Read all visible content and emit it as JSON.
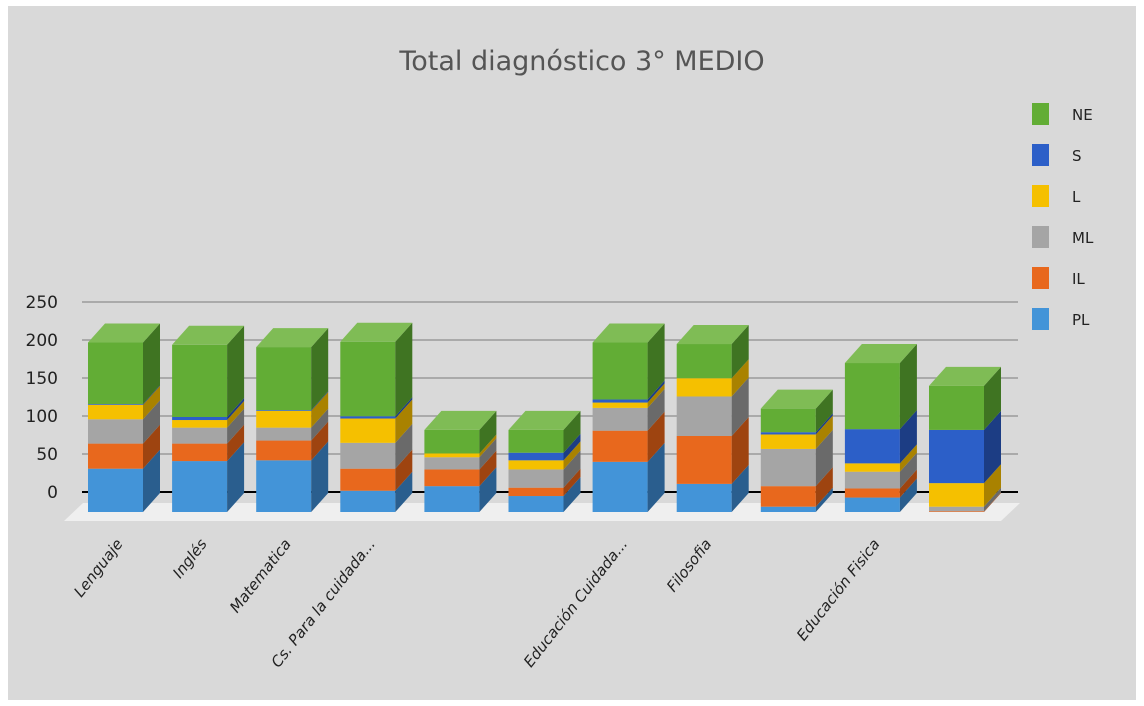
{
  "chart_data": {
    "type": "bar",
    "stacked": true,
    "three_d": true,
    "title": "Total diagnóstico 3° MEDIO",
    "xlabel": "",
    "ylabel": "",
    "ylim": [
      0,
      250
    ],
    "yticks": [
      0,
      50,
      100,
      150,
      200,
      250
    ],
    "grid": true,
    "legend_position": "right",
    "categories": [
      "Lenguaje",
      "Inglés",
      "Matematica",
      "Cs. Para la cuidada...",
      "",
      "",
      "Educación Cuidada...",
      "Filosofia",
      "",
      "Educación Fisica",
      ""
    ],
    "series": [
      {
        "name": "PL",
        "color": "#4394d8",
        "side_color": "#2a5e8e",
        "values": [
          57,
          67,
          68,
          28,
          34,
          21,
          66,
          37,
          7,
          19,
          0
        ]
      },
      {
        "name": "IL",
        "color": "#e8681d",
        "side_color": "#9e4410",
        "values": [
          33,
          23,
          26,
          29,
          22,
          11,
          41,
          63,
          27,
          12,
          1
        ]
      },
      {
        "name": "ML",
        "color": "#a5a5a5",
        "side_color": "#6a6a6a",
        "values": [
          32,
          21,
          17,
          34,
          16,
          24,
          30,
          52,
          49,
          22,
          6
        ]
      },
      {
        "name": "L",
        "color": "#f5c000",
        "side_color": "#a98200",
        "values": [
          19,
          10,
          22,
          32,
          5,
          12,
          7,
          24,
          19,
          11,
          31
        ]
      },
      {
        "name": "S",
        "color": "#2c5fc8",
        "side_color": "#1c3d84",
        "values": [
          1,
          4,
          1,
          3,
          0,
          10,
          4,
          0,
          3,
          45,
          70
        ]
      },
      {
        "name": "NE",
        "color": "#62ad35",
        "side_color": "#3f7422",
        "values": [
          81,
          95,
          83,
          98,
          31,
          30,
          75,
          45,
          31,
          87,
          58
        ]
      }
    ]
  }
}
